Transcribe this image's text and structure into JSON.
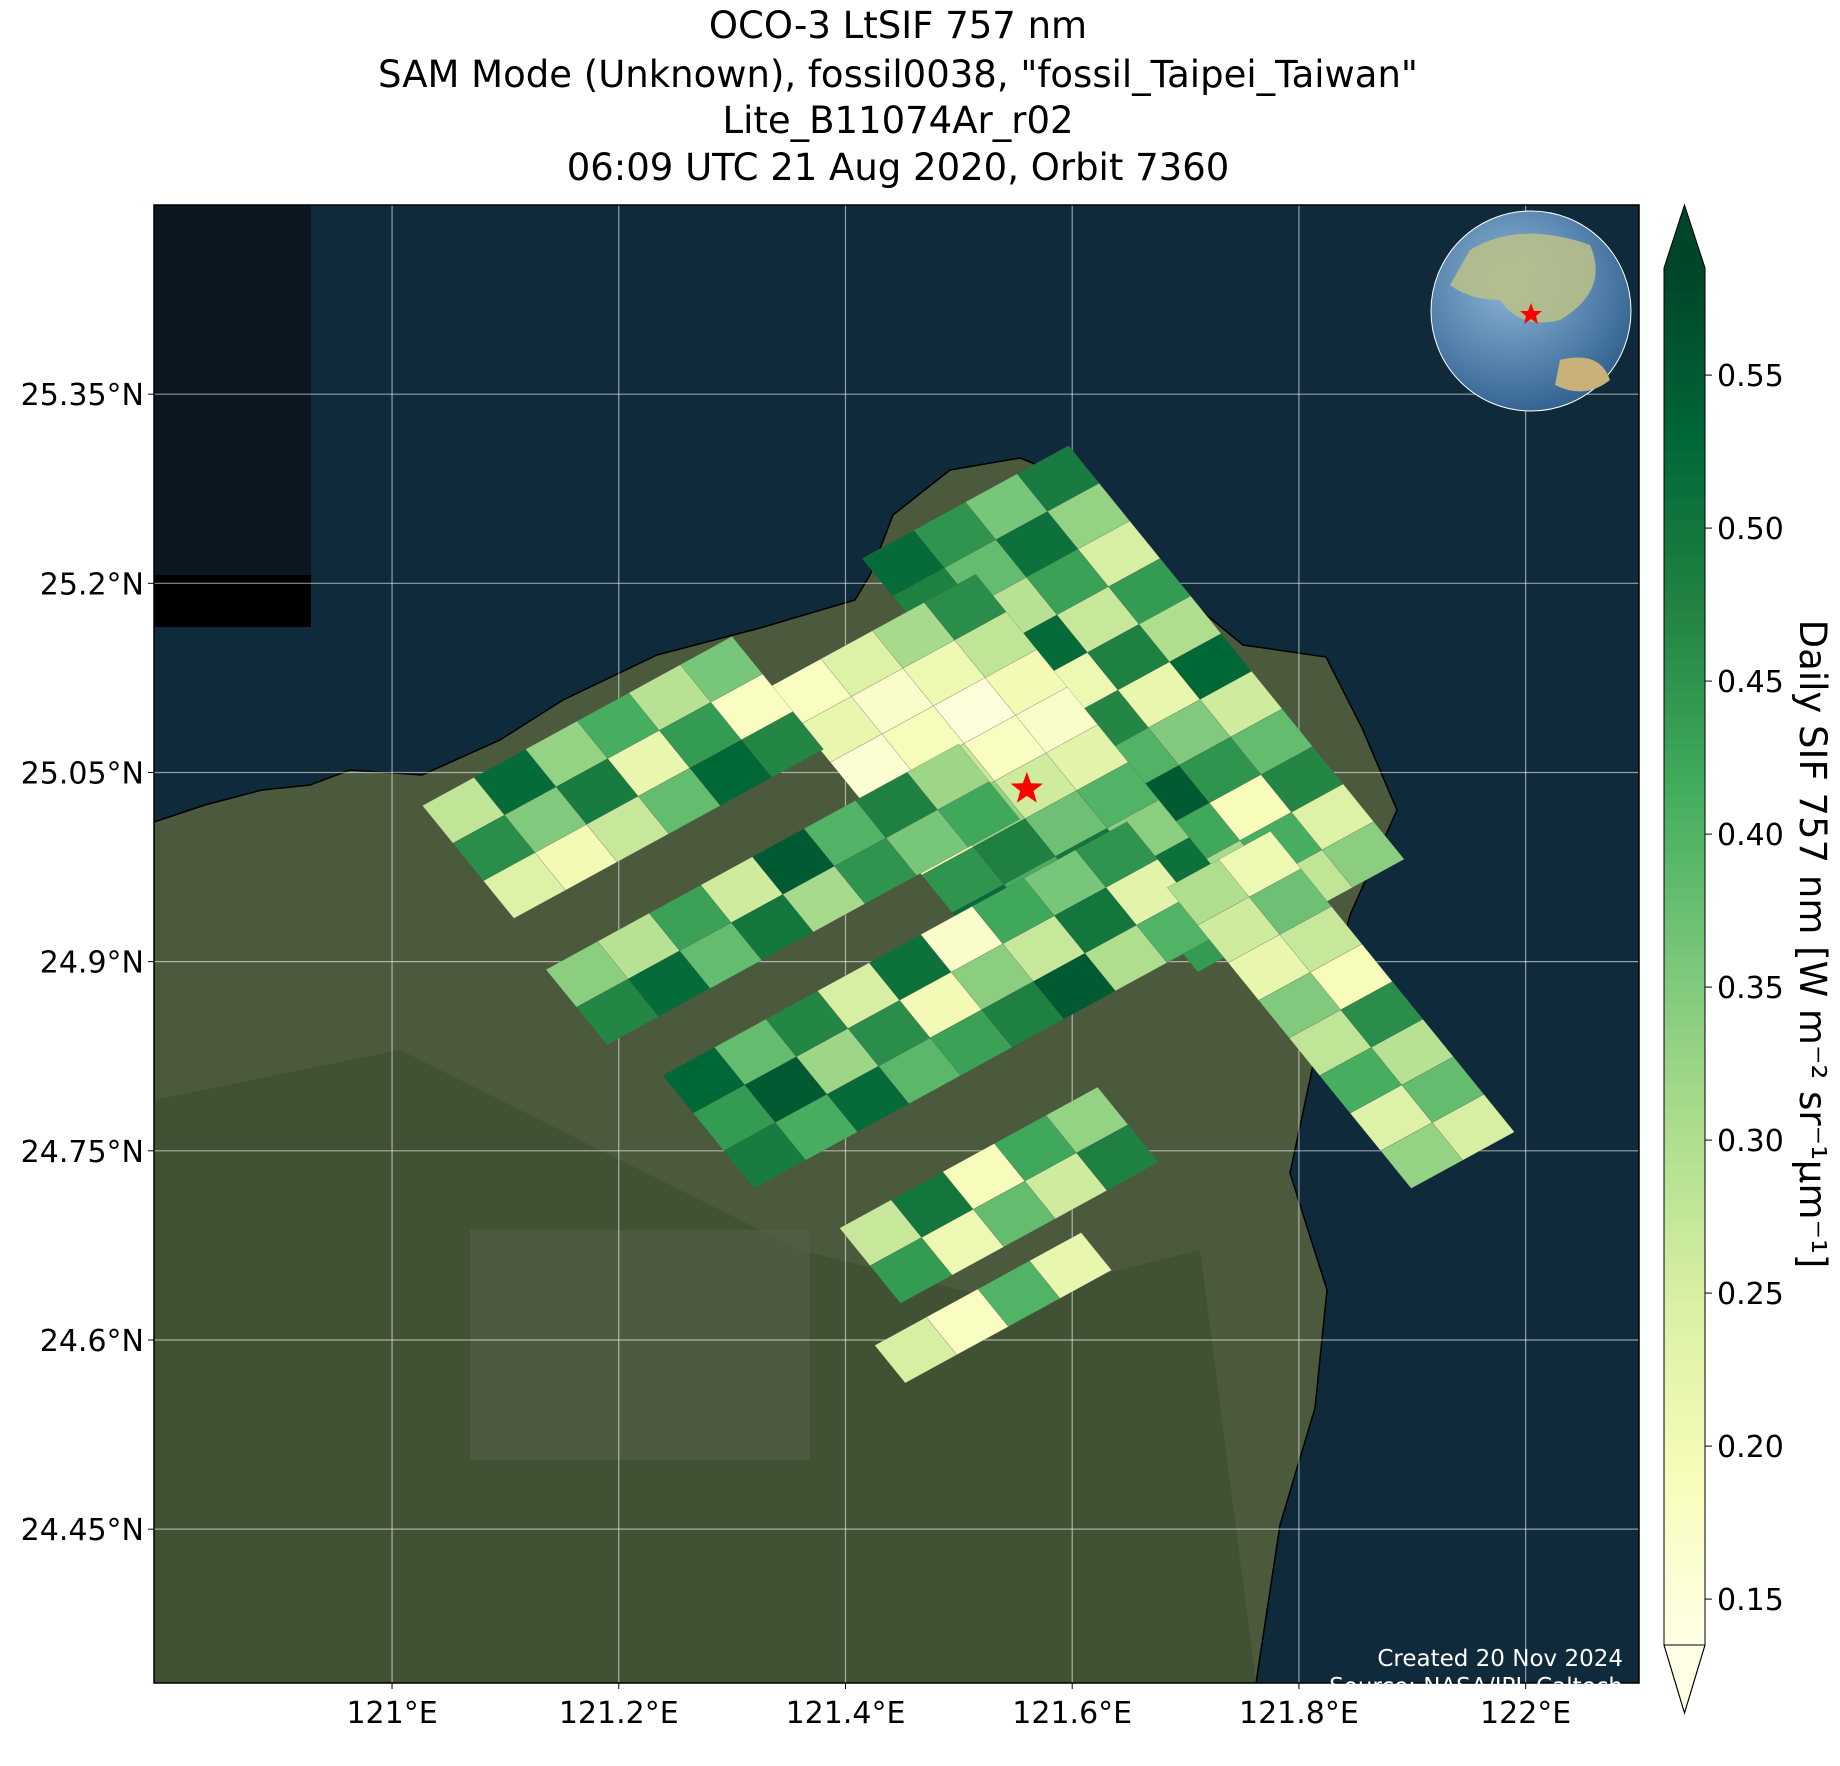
{
  "map": {
    "type": "footprint-map",
    "title": [
      "OCO-3 LtSIF 757 nm",
      "SAM Mode (Unknown), fossil0038, \"fossil_Taipei_Taiwan\"",
      "Lite_B11074Ar_r02",
      "06:09 UTC 21 Aug 2020, Orbit 7360"
    ],
    "xlim": [
      120.79,
      122.1
    ],
    "ylim": [
      24.328,
      25.5
    ],
    "xticks": [
      {
        "value": 121,
        "label": "121°E"
      },
      {
        "value": 121.2,
        "label": "121.2°E"
      },
      {
        "value": 121.4,
        "label": "121.4°E"
      },
      {
        "value": 121.6,
        "label": "121.6°E"
      },
      {
        "value": 121.8,
        "label": "121.8°E"
      },
      {
        "value": 122,
        "label": "122°E"
      }
    ],
    "yticks": [
      {
        "value": 24.45,
        "label": "24.45°N"
      },
      {
        "value": 24.6,
        "label": "24.6°N"
      },
      {
        "value": 24.75,
        "label": "24.75°N"
      },
      {
        "value": 24.9,
        "label": "24.9°N"
      },
      {
        "value": 25.05,
        "label": "25.05°N"
      },
      {
        "value": 25.2,
        "label": "25.2°N"
      },
      {
        "value": 25.35,
        "label": "25.35°N"
      }
    ],
    "grid": true,
    "target": {
      "lon": 121.56,
      "lat": 25.037,
      "color": "#ff0000"
    },
    "colorbar": {
      "label": "Daily SIF 757 nm [W m⁻² sr⁻¹μm⁻¹]",
      "clim": [
        0.135,
        0.585
      ],
      "ticks": [
        0.15,
        {
          "value": 0.2,
          "label": "0.20"
        },
        0.25,
        {
          "value": 0.3,
          "label": "0.30"
        },
        0.35,
        {
          "value": 0.4,
          "label": "0.40"
        },
        0.45,
        {
          "value": 0.5,
          "label": "0.50"
        },
        0.55
      ],
      "colormap": [
        "#ffffe5",
        "#f7fcb9",
        "#d9f0a3",
        "#addd8e",
        "#78c679",
        "#41ab5d",
        "#238443",
        "#006837",
        "#004529"
      ]
    },
    "swaths": [
      {
        "lon": 121.451,
        "lat": 25.216,
        "values": [
          [
            0.52,
            0.48,
            0.55,
            0.41,
            0.5,
            0.37,
            0.53,
            0.46,
            0.33,
            0.49,
            0.44
          ],
          [
            0.45,
            0.38,
            0.29,
            0.52,
            0.21,
            0.47,
            0.4,
            0.55,
            0.42,
            0.31,
            0.5
          ],
          [
            0.36,
            0.51,
            0.43,
            0.27,
            0.48,
            0.22,
            0.35,
            0.45,
            0.19,
            0.41,
            0.28
          ],
          [
            0.49,
            0.33,
            0.25,
            0.44,
            0.3,
            0.53,
            0.26,
            0.38,
            0.47,
            0.24,
            0.34
          ]
        ]
      },
      {
        "lon": 121.369,
        "lat": 25.114,
        "values": [
          [
            0.18,
            0.22,
            0.16,
            0.3,
            0.2,
            0.45,
            0.52,
            0.39
          ],
          [
            0.24,
            0.17,
            0.19,
            0.27,
            0.33,
            0.48,
            0.41,
            0.55
          ],
          [
            0.31,
            0.21,
            0.15,
            0.18,
            0.26,
            0.37,
            0.5,
            0.44
          ],
          [
            0.46,
            0.28,
            0.2,
            0.17,
            0.23,
            0.4,
            0.34,
            0.51
          ]
        ]
      },
      {
        "lon": 121.063,
        "lat": 25.02,
        "values": [
          [
            0.28,
            0.46,
            0.24
          ],
          [
            0.52,
            0.35,
            0.2
          ],
          [
            0.33,
            0.49,
            0.27
          ],
          [
            0.41,
            0.22,
            0.38
          ],
          [
            0.29,
            0.44,
            0.53
          ],
          [
            0.36,
            0.18,
            0.47
          ]
        ]
      },
      {
        "lon": 121.172,
        "lat": 24.89,
        "values": [
          [
            0.34,
            0.47
          ],
          [
            0.29,
            0.52
          ],
          [
            0.43,
            0.38
          ],
          [
            0.26,
            0.5
          ],
          [
            0.55,
            0.31
          ],
          [
            0.4,
            0.45
          ],
          [
            0.48,
            0.36
          ],
          [
            0.32,
            0.42
          ]
        ]
      },
      {
        "lon": 121.275,
        "lat": 24.806,
        "values": [
          [
            0.53,
            0.44,
            0.49
          ],
          [
            0.38,
            0.55,
            0.41
          ],
          [
            0.47,
            0.32,
            0.52
          ],
          [
            0.25,
            0.46,
            0.39
          ],
          [
            0.51,
            0.2,
            0.43
          ],
          [
            0.17,
            0.34,
            0.48
          ],
          [
            0.42,
            0.27,
            0.55
          ],
          [
            0.36,
            0.5,
            0.3
          ],
          [
            0.45,
            0.23,
            0.4
          ]
        ]
      },
      {
        "lon": 121.431,
        "lat": 24.685,
        "values": [
          [
            0.27,
            0.44
          ],
          [
            0.5,
            0.21
          ],
          [
            0.19,
            0.38
          ],
          [
            0.42,
            0.26
          ],
          [
            0.33,
            0.48
          ]
        ]
      },
      {
        "lon": 121.462,
        "lat": 24.592,
        "values": [
          [
            0.25
          ],
          [
            0.18
          ],
          [
            0.4
          ],
          [
            0.22
          ]
        ]
      },
      {
        "lon": 121.72,
        "lat": 24.955,
        "values": [
          [
            0.3,
            0.26,
            0.22,
            0.35,
            0.28,
            0.41,
            0.24,
            0.33
          ],
          [
            0.21,
            0.37,
            0.27,
            0.19,
            0.46,
            0.29,
            0.38,
            0.25
          ]
        ]
      }
    ],
    "credits": [
      "Created 20 Nov 2024",
      "Source: NASA/JPL-Caltech"
    ]
  }
}
